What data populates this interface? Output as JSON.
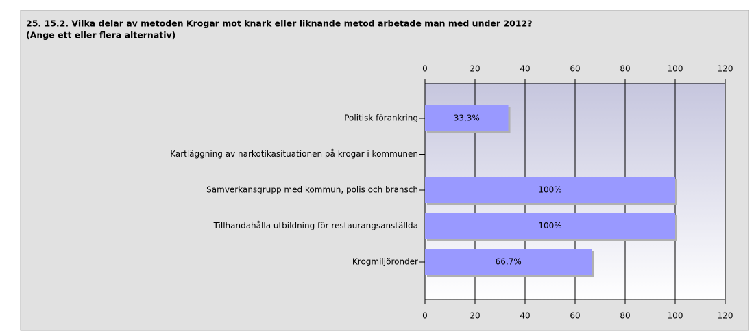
{
  "chart_data": {
    "type": "bar",
    "orientation": "horizontal",
    "title": "25. 15.2. Vilka delar av metoden Krogar mot knark eller liknande metod arbetade man med under 2012?",
    "subtitle": "(Ange ett eller flera alternativ)",
    "categories": [
      "Politisk förankring",
      "Kartläggning av narkotikasituationen på krogar i kommunen",
      "Samverkansgrupp med kommun, polis och bransch",
      "Tillhandahålla utbildning för restaurangsanställda",
      "Krogmiljöronder"
    ],
    "values": [
      33.3,
      0,
      100,
      100,
      66.7
    ],
    "value_labels": [
      "33,3%",
      null,
      "100%",
      "100%",
      "66,7%"
    ],
    "color": "#9999ff",
    "xlim": [
      0,
      120
    ],
    "xticks": [
      0,
      20,
      40,
      60,
      80,
      100,
      120
    ],
    "grid": true
  }
}
